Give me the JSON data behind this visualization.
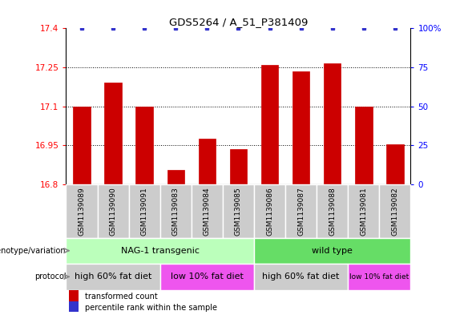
{
  "title": "GDS5264 / A_51_P381409",
  "samples": [
    "GSM1139089",
    "GSM1139090",
    "GSM1139091",
    "GSM1139083",
    "GSM1139084",
    "GSM1139085",
    "GSM1139086",
    "GSM1139087",
    "GSM1139088",
    "GSM1139081",
    "GSM1139082"
  ],
  "transformed_counts": [
    17.1,
    17.19,
    17.1,
    16.855,
    16.975,
    16.935,
    17.26,
    17.235,
    17.265,
    17.1,
    16.955
  ],
  "y_min": 16.8,
  "y_max": 17.4,
  "y_ticks": [
    16.8,
    16.95,
    17.1,
    17.25,
    17.4
  ],
  "y2_ticks": [
    0,
    25,
    50,
    75,
    100
  ],
  "bar_color": "#cc0000",
  "dot_color": "#3333cc",
  "genotype_groups": [
    {
      "label": "NAG-1 transgenic",
      "start": 0,
      "end": 6,
      "color": "#bbffbb"
    },
    {
      "label": "wild type",
      "start": 6,
      "end": 11,
      "color": "#66dd66"
    }
  ],
  "protocol_groups": [
    {
      "label": "high 60% fat diet",
      "start": 0,
      "end": 3,
      "color": "#cccccc"
    },
    {
      "label": "low 10% fat diet",
      "start": 3,
      "end": 6,
      "color": "#ee55ee"
    },
    {
      "label": "high 60% fat diet",
      "start": 6,
      "end": 9,
      "color": "#cccccc"
    },
    {
      "label": "low 10% fat diet",
      "start": 9,
      "end": 11,
      "color": "#ee55ee"
    }
  ],
  "xticklabel_bg": "#cccccc",
  "arrow_color": "#888888",
  "legend_bar_label": "transformed count",
  "legend_dot_label": "percentile rank within the sample"
}
